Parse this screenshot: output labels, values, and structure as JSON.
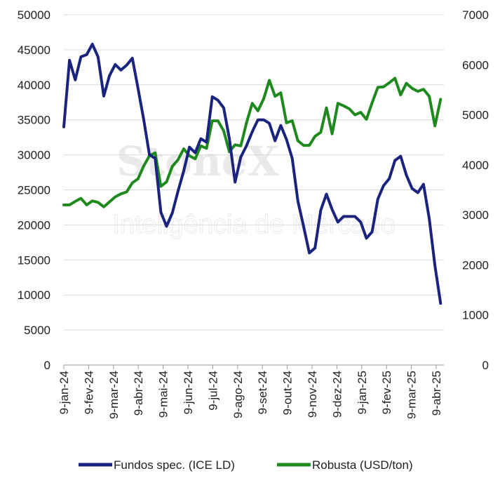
{
  "watermark": {
    "brand": "StoneX",
    "subtitle": "Inteligência de Mercado"
  },
  "colors": {
    "fundos": "#1a237e",
    "robusta": "#1e8a1e",
    "axis": "#999999",
    "grid": "#d9d9d9"
  },
  "chart_data": {
    "type": "line",
    "title": "",
    "xlabel": "",
    "ylabel": "",
    "y2label": "",
    "grid": true,
    "legend_position": "bottom",
    "x_tick_labels": [
      "9-jan-24",
      "9-fev-24",
      "9-mar-24",
      "9-abr-24",
      "9-mai-24",
      "9-jun-24",
      "9-jul-24",
      "9-ago-24",
      "9-set-24",
      "9-out-24",
      "9-nov-24",
      "9-dez-24",
      "9-jan-25",
      "9-fev-25",
      "9-mar-25",
      "9-abr-25"
    ],
    "y_left": {
      "min": 0,
      "max": 50000,
      "ticks": [
        "0",
        "5000",
        "10000",
        "15000",
        "20000",
        "25000",
        "30000",
        "35000",
        "40000",
        "45000",
        "50000"
      ]
    },
    "y_right": {
      "min": 0,
      "max": 7000,
      "ticks": [
        "0",
        "1000",
        "2000",
        "3000",
        "4000",
        "5000",
        "6000",
        "7000"
      ]
    },
    "series": [
      {
        "name": "Fundos spec. (ICE LD)",
        "axis": "left",
        "points": [
          [
            "2024-01-09",
            34000
          ],
          [
            "2024-01-16",
            43500
          ],
          [
            "2024-01-23",
            40700
          ],
          [
            "2024-01-30",
            44000
          ],
          [
            "2024-02-06",
            44300
          ],
          [
            "2024-02-13",
            45800
          ],
          [
            "2024-02-20",
            44000
          ],
          [
            "2024-02-27",
            38400
          ],
          [
            "2024-03-05",
            41300
          ],
          [
            "2024-03-12",
            42900
          ],
          [
            "2024-03-19",
            42100
          ],
          [
            "2024-03-26",
            42800
          ],
          [
            "2024-04-02",
            43800
          ],
          [
            "2024-04-09",
            39500
          ],
          [
            "2024-04-16",
            35000
          ],
          [
            "2024-04-23",
            30000
          ],
          [
            "2024-04-30",
            29500
          ],
          [
            "2024-05-07",
            21800
          ],
          [
            "2024-05-14",
            19800
          ],
          [
            "2024-05-21",
            21700
          ],
          [
            "2024-05-28",
            24800
          ],
          [
            "2024-06-04",
            27700
          ],
          [
            "2024-06-11",
            31100
          ],
          [
            "2024-06-18",
            30300
          ],
          [
            "2024-06-25",
            32300
          ],
          [
            "2024-07-02",
            31800
          ],
          [
            "2024-07-09",
            38300
          ],
          [
            "2024-07-16",
            37800
          ],
          [
            "2024-07-23",
            36700
          ],
          [
            "2024-07-30",
            32300
          ],
          [
            "2024-08-06",
            26100
          ],
          [
            "2024-08-13",
            29700
          ],
          [
            "2024-08-20",
            31300
          ],
          [
            "2024-08-27",
            33300
          ],
          [
            "2024-09-03",
            35000
          ],
          [
            "2024-09-10",
            35000
          ],
          [
            "2024-09-17",
            34500
          ],
          [
            "2024-09-24",
            32000
          ],
          [
            "2024-10-01",
            34200
          ],
          [
            "2024-10-08",
            32200
          ],
          [
            "2024-10-15",
            29500
          ],
          [
            "2024-10-22",
            23400
          ],
          [
            "2024-10-29",
            19800
          ],
          [
            "2024-11-05",
            16000
          ],
          [
            "2024-11-12",
            16700
          ],
          [
            "2024-11-19",
            22100
          ],
          [
            "2024-11-26",
            24400
          ],
          [
            "2024-12-03",
            22200
          ],
          [
            "2024-12-10",
            20400
          ],
          [
            "2024-12-17",
            21200
          ],
          [
            "2024-12-24",
            21200
          ],
          [
            "2024-12-31",
            21200
          ],
          [
            "2025-01-07",
            20400
          ],
          [
            "2025-01-14",
            18100
          ],
          [
            "2025-01-21",
            19000
          ],
          [
            "2025-01-28",
            23700
          ],
          [
            "2025-02-04",
            25600
          ],
          [
            "2025-02-11",
            26600
          ],
          [
            "2025-02-18",
            29200
          ],
          [
            "2025-02-25",
            29800
          ],
          [
            "2025-03-04",
            27100
          ],
          [
            "2025-03-11",
            25200
          ],
          [
            "2025-03-18",
            24600
          ],
          [
            "2025-03-25",
            25800
          ],
          [
            "2025-04-01",
            20900
          ],
          [
            "2025-04-08",
            14200
          ],
          [
            "2025-04-15",
            8800
          ]
        ]
      },
      {
        "name": "Robusta (USD/ton)",
        "axis": "right",
        "points": [
          [
            "2024-01-09",
            3200
          ],
          [
            "2024-01-16",
            3200
          ],
          [
            "2024-01-23",
            3270
          ],
          [
            "2024-01-30",
            3330
          ],
          [
            "2024-02-06",
            3200
          ],
          [
            "2024-02-13",
            3280
          ],
          [
            "2024-02-20",
            3250
          ],
          [
            "2024-02-27",
            3160
          ],
          [
            "2024-03-05",
            3260
          ],
          [
            "2024-03-12",
            3360
          ],
          [
            "2024-03-19",
            3420
          ],
          [
            "2024-03-26",
            3460
          ],
          [
            "2024-04-02",
            3640
          ],
          [
            "2024-04-09",
            3720
          ],
          [
            "2024-04-16",
            3980
          ],
          [
            "2024-04-23",
            4180
          ],
          [
            "2024-04-30",
            4240
          ],
          [
            "2024-05-07",
            3570
          ],
          [
            "2024-05-14",
            3660
          ],
          [
            "2024-05-21",
            3970
          ],
          [
            "2024-05-28",
            4100
          ],
          [
            "2024-06-04",
            4320
          ],
          [
            "2024-06-11",
            4180
          ],
          [
            "2024-06-18",
            4120
          ],
          [
            "2024-06-25",
            4380
          ],
          [
            "2024-07-02",
            4330
          ],
          [
            "2024-07-09",
            4880
          ],
          [
            "2024-07-16",
            4880
          ],
          [
            "2024-07-23",
            4680
          ],
          [
            "2024-07-30",
            4260
          ],
          [
            "2024-08-06",
            4400
          ],
          [
            "2024-08-13",
            4380
          ],
          [
            "2024-08-20",
            4840
          ],
          [
            "2024-08-27",
            5230
          ],
          [
            "2024-09-03",
            5080
          ],
          [
            "2024-09-10",
            5320
          ],
          [
            "2024-09-17",
            5690
          ],
          [
            "2024-09-24",
            5370
          ],
          [
            "2024-10-01",
            5440
          ],
          [
            "2024-10-08",
            4840
          ],
          [
            "2024-10-15",
            4880
          ],
          [
            "2024-10-22",
            4480
          ],
          [
            "2024-10-29",
            4390
          ],
          [
            "2024-11-05",
            4390
          ],
          [
            "2024-11-12",
            4570
          ],
          [
            "2024-11-19",
            4650
          ],
          [
            "2024-11-26",
            5140
          ],
          [
            "2024-12-03",
            4620
          ],
          [
            "2024-12-10",
            5230
          ],
          [
            "2024-12-17",
            5180
          ],
          [
            "2024-12-24",
            5120
          ],
          [
            "2024-12-31",
            5000
          ],
          [
            "2025-01-07",
            5050
          ],
          [
            "2025-01-14",
            4910
          ],
          [
            "2025-01-21",
            5240
          ],
          [
            "2025-01-28",
            5550
          ],
          [
            "2025-02-04",
            5560
          ],
          [
            "2025-02-11",
            5640
          ],
          [
            "2025-02-18",
            5730
          ],
          [
            "2025-02-25",
            5400
          ],
          [
            "2025-03-04",
            5630
          ],
          [
            "2025-03-11",
            5530
          ],
          [
            "2025-03-18",
            5470
          ],
          [
            "2025-03-25",
            5510
          ],
          [
            "2025-04-01",
            5370
          ],
          [
            "2025-04-08",
            4780
          ],
          [
            "2025-04-15",
            5310
          ]
        ]
      }
    ]
  }
}
